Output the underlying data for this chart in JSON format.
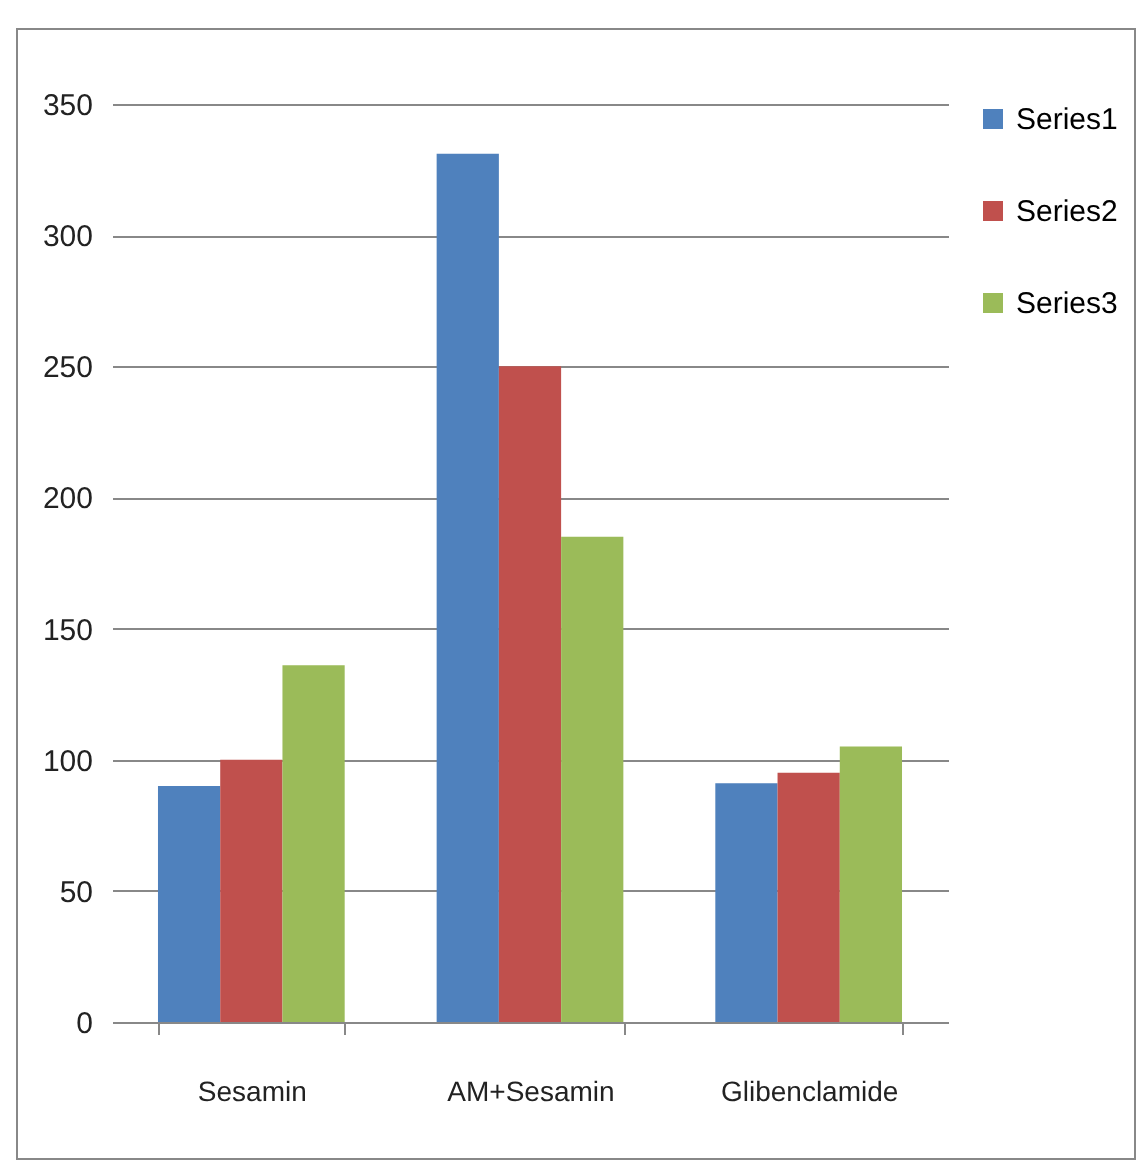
{
  "chart_data": {
    "type": "bar",
    "categories": [
      "Sesamin",
      "AM+Sesamin",
      "Glibenclamide"
    ],
    "series": [
      {
        "name": "Series1",
        "color": "#4f81bd",
        "values": [
          90,
          331,
          91
        ]
      },
      {
        "name": "Series2",
        "color": "#c0504d",
        "values": [
          100,
          250,
          95
        ]
      },
      {
        "name": "Series3",
        "color": "#9bbb59",
        "values": [
          136,
          185,
          105
        ]
      }
    ],
    "ylim": [
      0,
      350
    ],
    "yticks": [
      0,
      50,
      100,
      150,
      200,
      250,
      300,
      350
    ],
    "grid": "y",
    "legend": "right"
  }
}
